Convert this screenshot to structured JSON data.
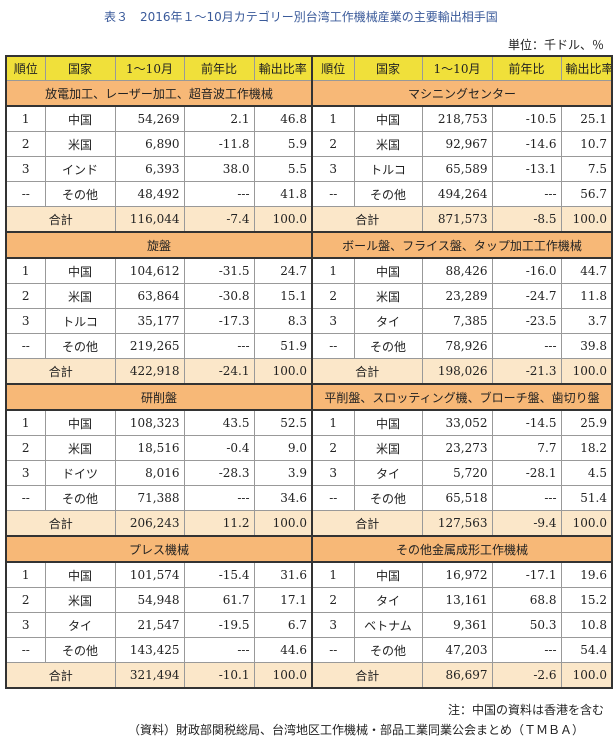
{
  "title": "表３　2016年１～10月カテゴリー別台湾工作機械産業の主要輸出相手国",
  "unit": "単位：千ドル、％",
  "headers": [
    "順位",
    "国家",
    "1～10月",
    "前年比",
    "輸出比率"
  ],
  "sections": [
    {
      "left": {
        "name": "放電加工、レーザー加工、超音波工作機械",
        "rows": [
          [
            "1",
            "中国",
            "54,269",
            "2.1",
            "46.8"
          ],
          [
            "2",
            "米国",
            "6,890",
            "-11.8",
            "5.9"
          ],
          [
            "3",
            "インド",
            "6,393",
            "38.0",
            "5.5"
          ],
          [
            "--",
            "その他",
            "48,492",
            "---",
            "41.8"
          ]
        ],
        "total": [
          "合計",
          "116,044",
          "-7.4",
          "100.0"
        ]
      },
      "right": {
        "name": "マシニングセンター",
        "rows": [
          [
            "1",
            "中国",
            "218,753",
            "-10.5",
            "25.1"
          ],
          [
            "2",
            "米国",
            "92,967",
            "-14.6",
            "10.7"
          ],
          [
            "3",
            "トルコ",
            "65,589",
            "-13.1",
            "7.5"
          ],
          [
            "--",
            "その他",
            "494,264",
            "---",
            "56.7"
          ]
        ],
        "total": [
          "合計",
          "871,573",
          "-8.5",
          "100.0"
        ]
      }
    },
    {
      "left": {
        "name": "旋盤",
        "rows": [
          [
            "1",
            "中国",
            "104,612",
            "-31.5",
            "24.7"
          ],
          [
            "2",
            "米国",
            "63,864",
            "-30.8",
            "15.1"
          ],
          [
            "3",
            "トルコ",
            "35,177",
            "-17.3",
            "8.3"
          ],
          [
            "--",
            "その他",
            "219,265",
            "---",
            "51.9"
          ]
        ],
        "total": [
          "合計",
          "422,918",
          "-24.1",
          "100.0"
        ]
      },
      "right": {
        "name": "ボール盤、フライス盤、タップ加工工作機械",
        "rows": [
          [
            "1",
            "中国",
            "88,426",
            "-16.0",
            "44.7"
          ],
          [
            "2",
            "米国",
            "23,289",
            "-24.7",
            "11.8"
          ],
          [
            "3",
            "タイ",
            "7,385",
            "-23.5",
            "3.7"
          ],
          [
            "--",
            "その他",
            "78,926",
            "---",
            "39.8"
          ]
        ],
        "total": [
          "合計",
          "198,026",
          "-21.3",
          "100.0"
        ]
      }
    },
    {
      "left": {
        "name": "研削盤",
        "rows": [
          [
            "1",
            "中国",
            "108,323",
            "43.5",
            "52.5"
          ],
          [
            "2",
            "米国",
            "18,516",
            "-0.4",
            "9.0"
          ],
          [
            "3",
            "ドイツ",
            "8,016",
            "-28.3",
            "3.9"
          ],
          [
            "--",
            "その他",
            "71,388",
            "---",
            "34.6"
          ]
        ],
        "total": [
          "合計",
          "206,243",
          "11.2",
          "100.0"
        ]
      },
      "right": {
        "name": "平削盤、スロッティング機、ブローチ盤、歯切り盤",
        "rows": [
          [
            "1",
            "中国",
            "33,052",
            "-14.5",
            "25.9"
          ],
          [
            "2",
            "米国",
            "23,273",
            "7.7",
            "18.2"
          ],
          [
            "3",
            "タイ",
            "5,720",
            "-28.1",
            "4.5"
          ],
          [
            "--",
            "その他",
            "65,518",
            "---",
            "51.4"
          ]
        ],
        "total": [
          "合計",
          "127,563",
          "-9.4",
          "100.0"
        ]
      }
    },
    {
      "left": {
        "name": "プレス機械",
        "rows": [
          [
            "1",
            "中国",
            "101,574",
            "-15.4",
            "31.6"
          ],
          [
            "2",
            "米国",
            "54,948",
            "61.7",
            "17.1"
          ],
          [
            "3",
            "タイ",
            "21,547",
            "-19.5",
            "6.7"
          ],
          [
            "--",
            "その他",
            "143,425",
            "---",
            "44.6"
          ]
        ],
        "total": [
          "合計",
          "321,494",
          "-10.1",
          "100.0"
        ]
      },
      "right": {
        "name": "その他金属成形工作機械",
        "rows": [
          [
            "1",
            "中国",
            "16,972",
            "-17.1",
            "19.6"
          ],
          [
            "2",
            "タイ",
            "13,161",
            "68.8",
            "15.2"
          ],
          [
            "3",
            "ベトナム",
            "9,361",
            "50.3",
            "10.8"
          ],
          [
            "--",
            "その他",
            "47,203",
            "---",
            "54.4"
          ]
        ],
        "total": [
          "合計",
          "86,697",
          "-2.6",
          "100.0"
        ]
      }
    }
  ],
  "note": "注：中国の資料は香港を含む",
  "source": "（資料）財政部関税総局、台湾地区工作機械・部品工業同業公会まとめ（ＴＭＢＡ）"
}
